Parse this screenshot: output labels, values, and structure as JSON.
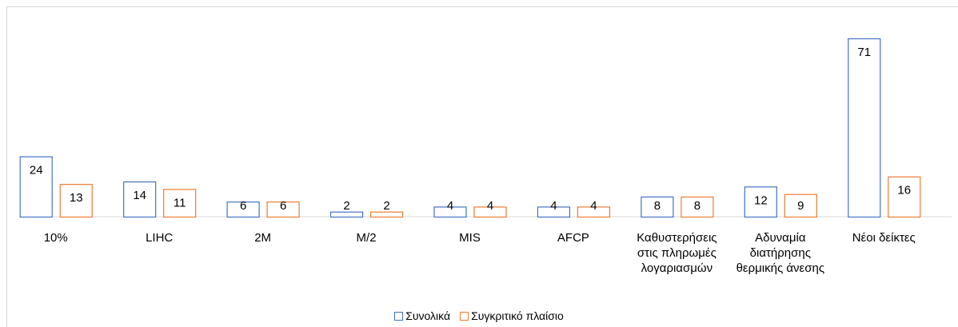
{
  "chart_data": {
    "type": "bar",
    "categories": [
      "10%",
      "LIHC",
      "2M",
      "M/2",
      "MIS",
      "AFCP",
      "Καθυστερήσεις στις πληρωμές λογαριασμών",
      "Αδυναμία διατήρησης θερμικής άνεσης",
      "Νέοι δείκτες"
    ],
    "series": [
      {
        "name": "Συνολικά",
        "color": "#4472c4",
        "values": [
          24,
          14,
          6,
          2,
          4,
          4,
          8,
          12,
          71
        ]
      },
      {
        "name": "Συγκριτικό πλαίσιο",
        "color": "#ed7d31",
        "values": [
          13,
          11,
          6,
          2,
          4,
          4,
          8,
          9,
          16
        ]
      }
    ],
    "legend": "bottom"
  }
}
